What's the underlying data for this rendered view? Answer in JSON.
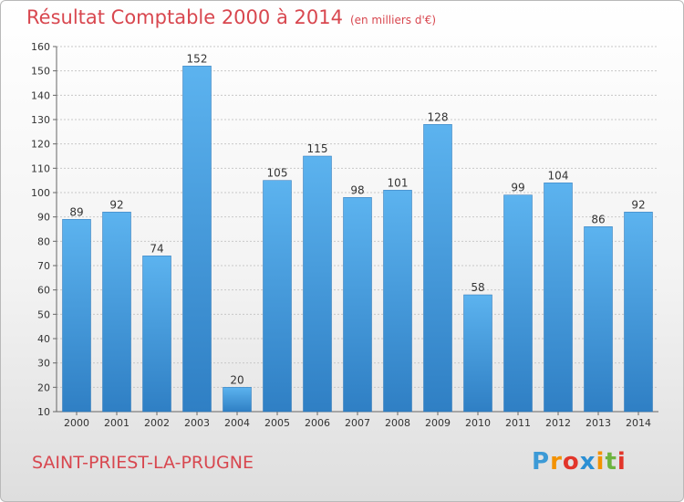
{
  "chart_data": {
    "type": "bar",
    "title": "Résultat Comptable 2000 à 2014",
    "subtitle": "(en milliers d'€)",
    "categories": [
      "2000",
      "2001",
      "2002",
      "2003",
      "2004",
      "2005",
      "2006",
      "2007",
      "2008",
      "2009",
      "2010",
      "2011",
      "2012",
      "2013",
      "2014"
    ],
    "values": [
      89,
      92,
      74,
      152,
      20,
      105,
      115,
      98,
      101,
      128,
      58,
      99,
      104,
      86,
      92
    ],
    "ylim": [
      10,
      160
    ],
    "yticks": [
      10,
      20,
      30,
      40,
      50,
      60,
      70,
      80,
      90,
      100,
      110,
      120,
      130,
      140,
      150,
      160
    ],
    "grid": true,
    "bar_color": "#4a9fe0"
  },
  "location": "SAINT-PRIEST-LA-PRUGNE",
  "logo": {
    "letters": [
      "P",
      "r",
      "o",
      "x",
      "i",
      "t",
      "i"
    ],
    "colors": [
      "#3c9ad6",
      "#f39200",
      "#e2352a",
      "#2a8fd4",
      "#f39200",
      "#6db33f",
      "#e2352a"
    ]
  },
  "colors": {
    "accent": "#d8474f"
  }
}
